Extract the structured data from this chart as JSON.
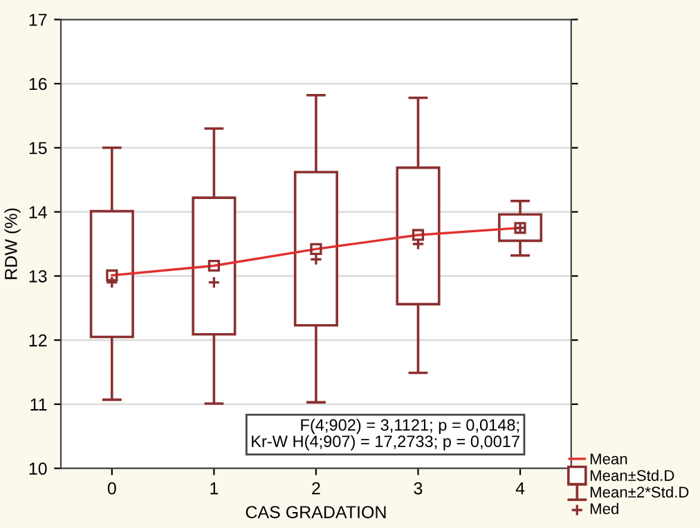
{
  "chart_data": {
    "type": "box",
    "xlabel": "CAS GRADATION",
    "ylabel": "RDW (%)",
    "categories": [
      "0",
      "1",
      "2",
      "3",
      "4"
    ],
    "ylim": [
      10,
      17
    ],
    "yticks": [
      10,
      11,
      12,
      13,
      14,
      15,
      16,
      17
    ],
    "grid": "y",
    "legend": "bottom right",
    "series": [
      {
        "name": "Mean±2*Std.D",
        "type": "scatter",
        "marker": "square",
        "color": "#8b3030",
        "values": [
          13.01,
          13.16,
          13.42,
          13.64,
          13.75
        ],
        "errors": [
          [
            11.07,
            15.0
          ],
          [
            11.01,
            15.3
          ],
          [
            11.03,
            15.82
          ],
          [
            11.49,
            15.78
          ],
          [
            13.32,
            14.17
          ]
        ]
      },
      {
        "name": "Mean±Std.D",
        "type": "bar",
        "color": "#8b3030",
        "base": [
          12.05,
          12.09,
          12.23,
          12.56,
          13.55
        ],
        "values": [
          1.96,
          2.13,
          2.39,
          2.13,
          0.41
        ]
      },
      {
        "name": "Mean",
        "type": "line",
        "color": "#e03030",
        "values": [
          13.01,
          13.16,
          13.42,
          13.64,
          13.75
        ]
      },
      {
        "name": "Med",
        "type": "scatter",
        "marker": "cross",
        "color": "#8b3030",
        "values": [
          12.9,
          12.9,
          13.26,
          13.5,
          13.75
        ]
      }
    ],
    "annotations": [
      "F(4;902) = 3,1121; p = 0,0148;",
      "Kr-W H(4;907) = 17,2733; p = 0,0017"
    ]
  }
}
